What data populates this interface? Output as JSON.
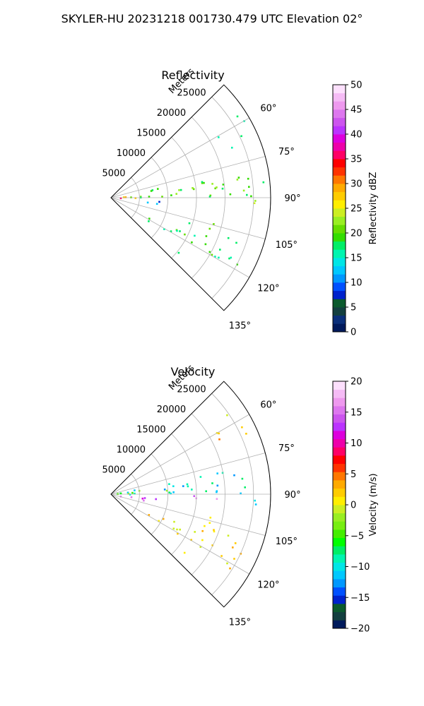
{
  "figure": {
    "suptitle": "SKYLER-HU  20231218  001730.479 UTC Elevation 02°"
  },
  "chart_data": [
    {
      "type": "heatmap",
      "projection": "polar-sector",
      "title": "Reflectivity",
      "range_axis_label": "Meters",
      "range_ticks": [
        5000,
        10000,
        15000,
        20000,
        25000
      ],
      "range_tick_labels": [
        "5000",
        "10000",
        "15000",
        "20000",
        "25000"
      ],
      "range_max": 28000,
      "azimuth_range": [
        45,
        135
      ],
      "azimuth_ticks": [
        60,
        75,
        90,
        105,
        120,
        135
      ],
      "azimuth_tick_labels": [
        "60°",
        "75°",
        "90°",
        "105°",
        "120°",
        "135°"
      ],
      "grid": true,
      "colorbar": {
        "label": "Reflectivity dBZ",
        "range": [
          0,
          50
        ],
        "ticks": [
          "0",
          "5",
          "10",
          "15",
          "20",
          "25",
          "30",
          "35",
          "40",
          "45",
          "50"
        ],
        "colors": [
          "#001a5c",
          "#0a2f7a",
          "#133f3f",
          "#0b5a2d",
          "#0022cc",
          "#0050ff",
          "#0098ff",
          "#00c8ff",
          "#00e6e6",
          "#00f5b0",
          "#00ee66",
          "#33dd00",
          "#66dd00",
          "#99ee22",
          "#ccee22",
          "#ffee00",
          "#ffcc00",
          "#ffaa00",
          "#ff7700",
          "#ff3300",
          "#ff0000",
          "#ff0066",
          "#ee00aa",
          "#dd00dd",
          "#bb33ff",
          "#cc55ee",
          "#dd77ee",
          "#ee99ee",
          "#f5bbf5",
          "#fde0fd"
        ]
      },
      "echo_regions": [
        {
          "az_range": [
            78,
            90
          ],
          "r_range": [
            300,
            28000
          ],
          "value": 20
        },
        {
          "az_range": [
            81,
            89
          ],
          "r_range": [
            1000,
            5500
          ],
          "value": 28
        },
        {
          "az_range": [
            84,
            88
          ],
          "r_range": [
            1000,
            2800
          ],
          "value": 36
        },
        {
          "az_range": [
            55,
            68
          ],
          "r_range": [
            21000,
            27000
          ],
          "value": 18
        },
        {
          "az_range": [
            86,
            92
          ],
          "r_range": [
            24000,
            28000
          ],
          "value": 22
        },
        {
          "az_range": [
            93,
            100
          ],
          "r_range": [
            4500,
            9500
          ],
          "value": 11
        },
        {
          "az_range": [
            107,
            122
          ],
          "r_range": [
            7000,
            25000
          ],
          "value": 18
        },
        {
          "az_range": [
            95,
            113
          ],
          "r_range": [
            17000,
            19000
          ],
          "value": 20
        },
        {
          "az_range": [
            128,
            132
          ],
          "r_range": [
            15000,
            17000
          ],
          "value": 20
        }
      ]
    },
    {
      "type": "heatmap",
      "projection": "polar-sector",
      "title": "Velocity",
      "range_axis_label": "Meters",
      "range_ticks": [
        5000,
        10000,
        15000,
        20000,
        25000
      ],
      "range_tick_labels": [
        "5000",
        "10000",
        "15000",
        "20000",
        "25000"
      ],
      "range_max": 28000,
      "azimuth_range": [
        45,
        135
      ],
      "azimuth_ticks": [
        60,
        75,
        90,
        105,
        120,
        135
      ],
      "azimuth_tick_labels": [
        "60°",
        "75°",
        "90°",
        "105°",
        "120°",
        "135°"
      ],
      "grid": true,
      "colorbar": {
        "label": "Velocity (m/s)",
        "range": [
          -20,
          20
        ],
        "ticks": [
          "−20",
          "−15",
          "−10",
          "−5",
          "0",
          "5",
          "10",
          "15",
          "20"
        ],
        "colors": [
          "#001a5c",
          "#133f3f",
          "#0b5a2d",
          "#0022cc",
          "#0050ff",
          "#0098ff",
          "#00c8ff",
          "#00e6e6",
          "#00f5b0",
          "#00ee66",
          "#00ff00",
          "#44ee00",
          "#77ee11",
          "#99ee22",
          "#ccee22",
          "#ffee00",
          "#ffcc00",
          "#ffaa00",
          "#ff7700",
          "#ff3300",
          "#ff0000",
          "#ff0066",
          "#ee00aa",
          "#dd00dd",
          "#bb33ff",
          "#cc55ee",
          "#dd77ee",
          "#ee99ee",
          "#f5bbf5",
          "#fde0fd"
        ]
      },
      "echo_regions": [
        {
          "az_range": [
            78,
            90
          ],
          "r_range": [
            300,
            28000
          ],
          "value": -10
        },
        {
          "az_range": [
            78,
            86
          ],
          "r_range": [
            1000,
            10000
          ],
          "value": -4
        },
        {
          "az_range": [
            90,
            93
          ],
          "r_range": [
            11000,
            19000
          ],
          "value": 15
        },
        {
          "az_range": [
            90,
            95
          ],
          "r_range": [
            25000,
            28000
          ],
          "value": -12
        },
        {
          "az_range": [
            55,
            68
          ],
          "r_range": [
            21000,
            27000
          ],
          "value": 2
        },
        {
          "az_range": [
            93,
            100
          ],
          "r_range": [
            1000,
            9000
          ],
          "value": 14
        },
        {
          "az_range": [
            107,
            122
          ],
          "r_range": [
            7000,
            25000
          ],
          "value": 1
        },
        {
          "az_range": [
            95,
            113
          ],
          "r_range": [
            17000,
            19000
          ],
          "value": 2
        },
        {
          "az_range": [
            128,
            132
          ],
          "r_range": [
            15000,
            17000
          ],
          "value": -2
        }
      ]
    }
  ]
}
